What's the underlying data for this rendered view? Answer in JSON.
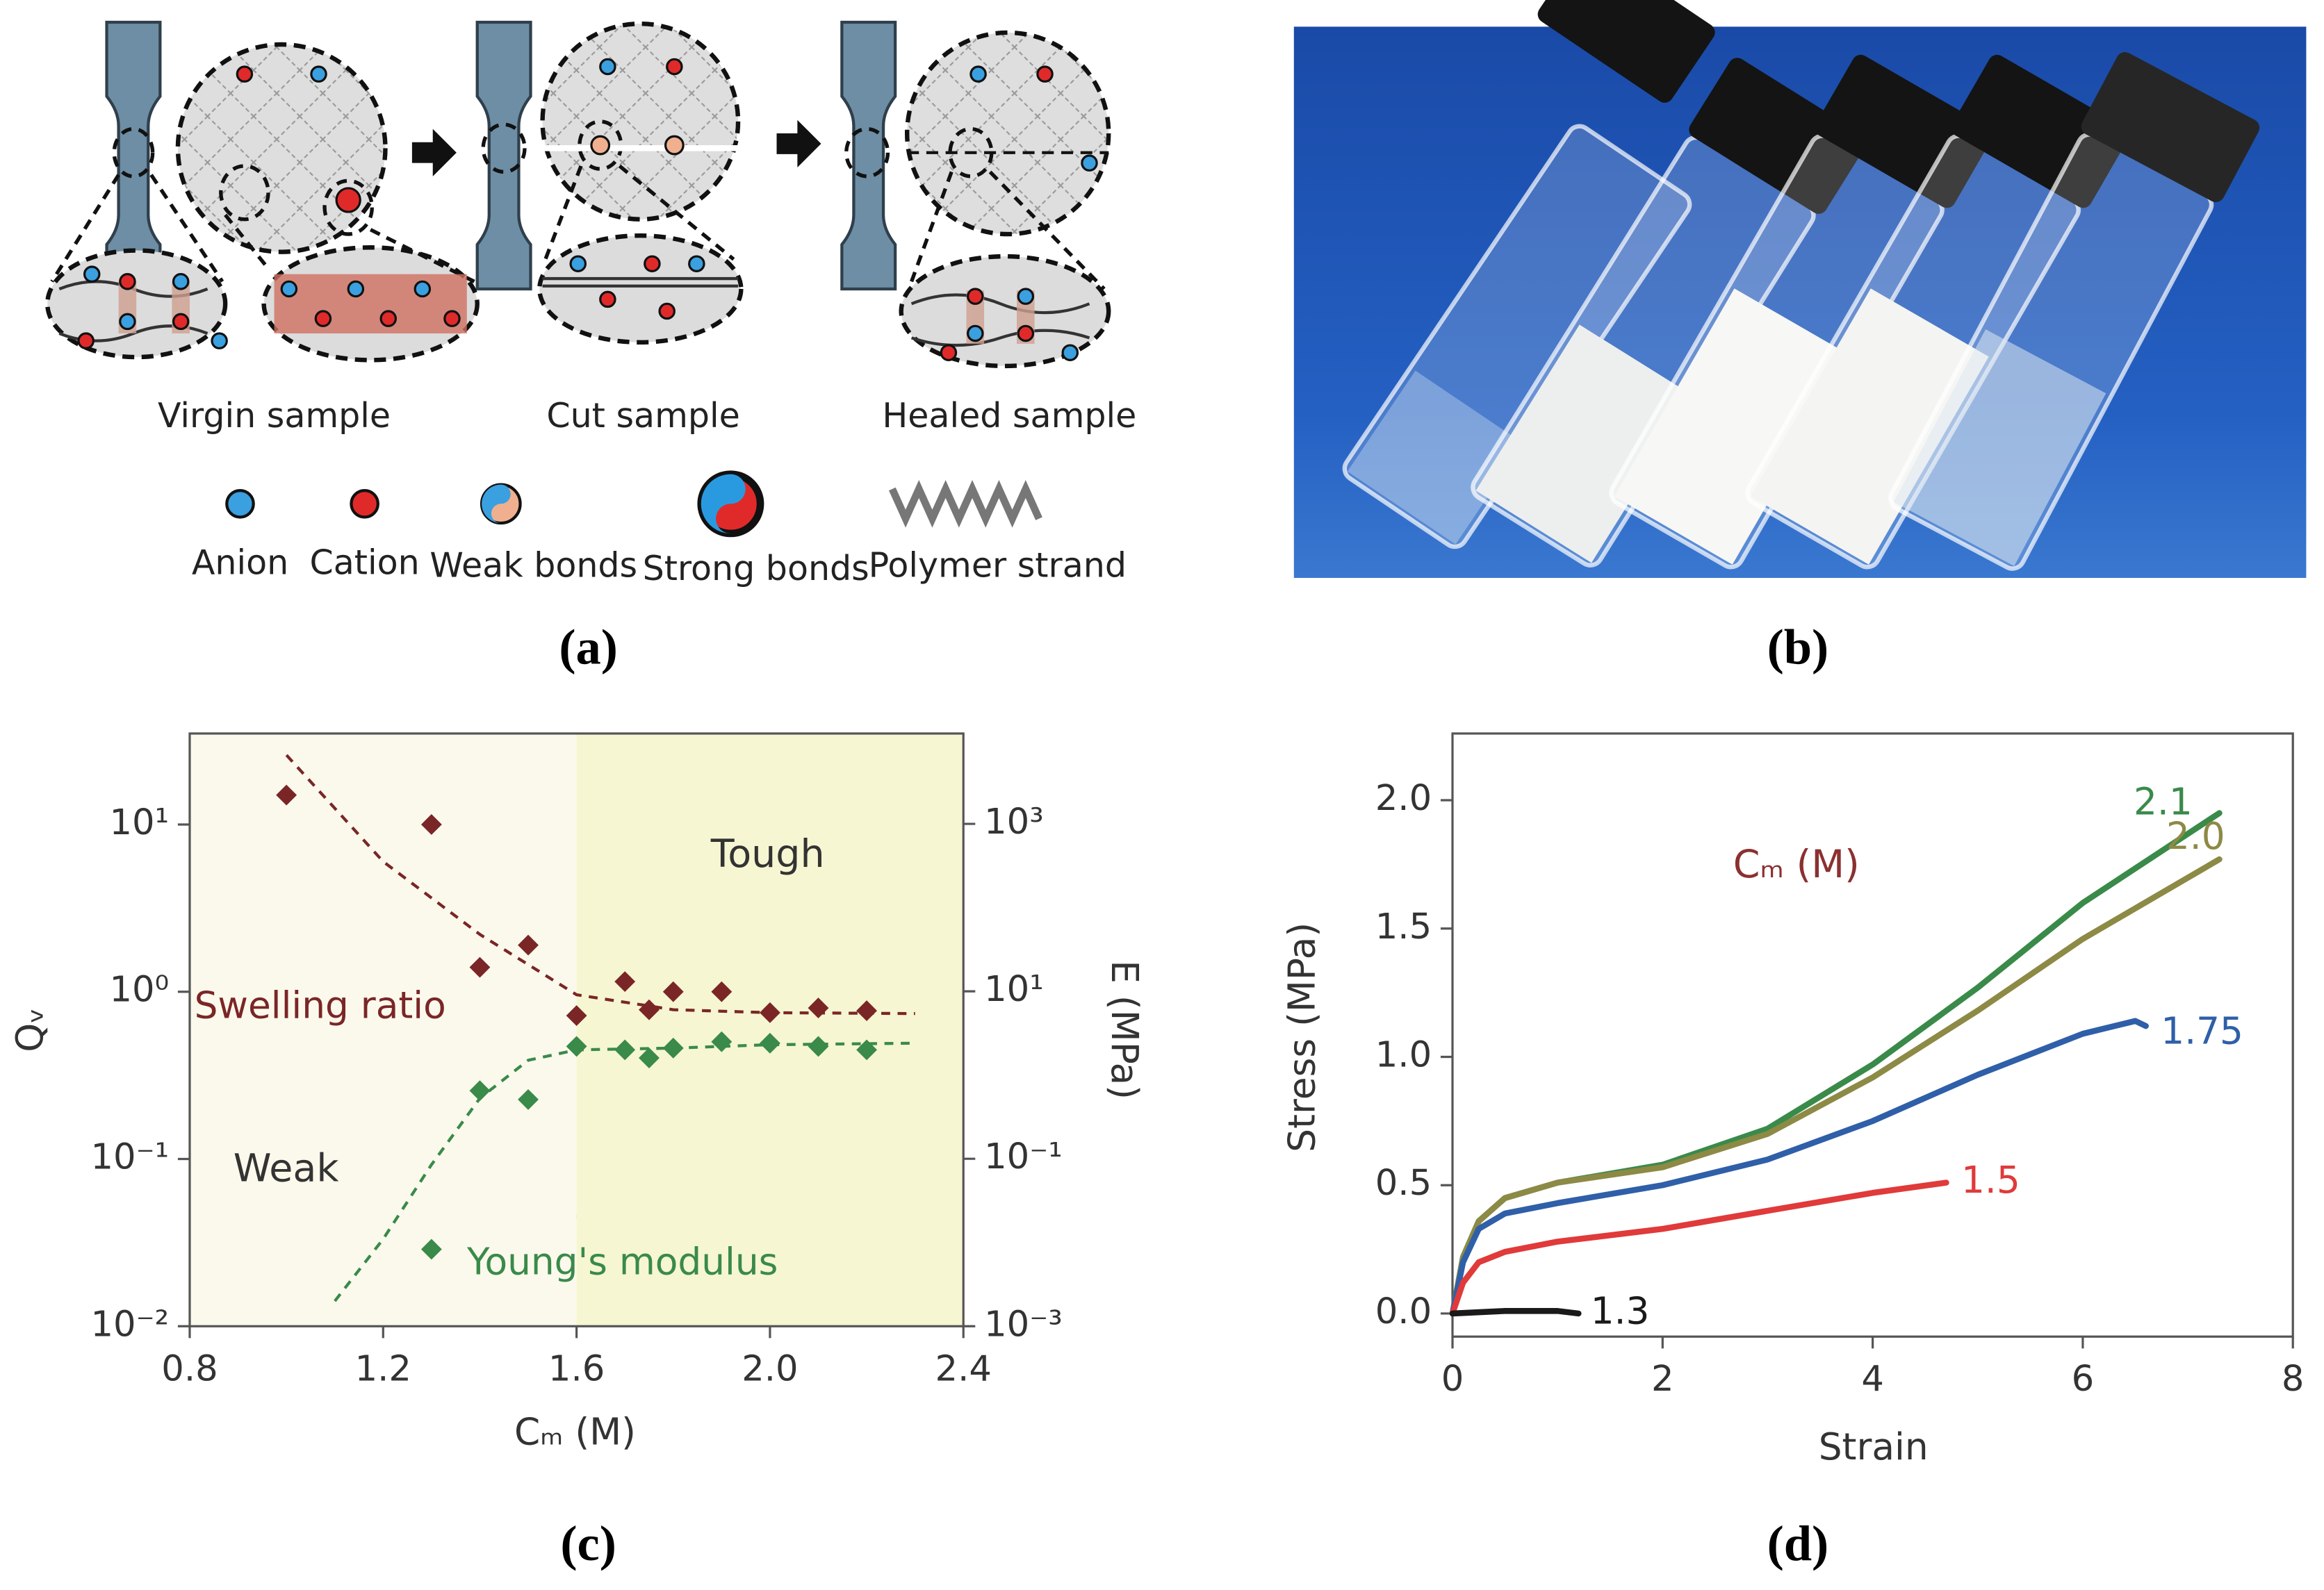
{
  "panels": {
    "a": {
      "caption": "(a)",
      "stages": [
        "Virgin  sample",
        "Cut sample",
        "Healed sample"
      ],
      "legend": [
        "Anion",
        "Cation",
        "Weak bonds",
        "Strong bonds",
        "Polymer strand"
      ]
    },
    "b": {
      "caption": "(b)"
    },
    "c": {
      "caption": "(c)"
    },
    "d": {
      "caption": "(d)"
    }
  },
  "chart_data": [
    {
      "type": "scatter",
      "xlabel": "Cₘ (M)",
      "ylabel": "Qᵥ",
      "y2label": "E (MPa)",
      "xlim": [
        0.8,
        2.4
      ],
      "xticks": [
        0.8,
        1.2,
        1.6,
        {
          "value": 2,
          "label": "2.0"
        },
        2.4
      ],
      "ylim": [
        0.01,
        35
      ],
      "ylog": true,
      "yticks": [
        {
          "value": 0.01,
          "label": "10⁻²"
        },
        {
          "value": 0.1,
          "label": "10⁻¹"
        },
        {
          "value": 1,
          "label": "10⁰"
        },
        {
          "value": 10,
          "label": "10¹"
        }
      ],
      "y2lim": [
        0.001,
        12000
      ],
      "y2log": true,
      "y2ticks": [
        {
          "value": 0.001,
          "label": "10⁻³"
        },
        {
          "value": 0.1,
          "label": "10⁻¹"
        },
        {
          "value": 10,
          "label": "10¹"
        },
        {
          "value": 1000,
          "label": "10³"
        }
      ],
      "regions": [
        {
          "name": "Weak",
          "xlim": [
            0.8,
            1.6
          ],
          "color": "#fbf9ec"
        },
        {
          "name": "Tough",
          "xlim": [
            1.6,
            2.4
          ],
          "color": "#f6f6d2"
        }
      ],
      "series": [
        {
          "name": "Swelling ratio",
          "color": "#7a2626",
          "x": [
            1.0,
            1.3,
            1.4,
            1.5,
            1.6,
            1.7,
            1.75,
            1.8,
            1.9,
            2.0,
            2.1,
            2.2
          ],
          "values": [
            15,
            10,
            1.4,
            1.9,
            0.72,
            1.15,
            0.78,
            1.0,
            1.0,
            0.75,
            0.8,
            0.77
          ]
        },
        {
          "name": "Young's modulus",
          "color": "#3a8a4a",
          "axis": "y2",
          "x": [
            1.3,
            1.4,
            1.5,
            1.6,
            1.7,
            1.75,
            1.8,
            1.9,
            2.0,
            2.1,
            2.2
          ],
          "values": [
            0.0083,
            0.65,
            0.51,
            2.2,
            2.0,
            1.6,
            2.1,
            2.5,
            2.4,
            2.2,
            2.0
          ]
        }
      ],
      "fits": [
        {
          "color": "#7a2626",
          "dashed": true,
          "x": [
            1.0,
            1.2,
            1.4,
            1.6,
            1.8,
            2.0,
            2.3
          ],
          "values": [
            26,
            6,
            2.2,
            0.96,
            0.78,
            0.75,
            0.74
          ]
        },
        {
          "color": "#3a8a4a",
          "dashed": true,
          "axis": "y2",
          "x": [
            1.1,
            1.2,
            1.3,
            1.4,
            1.5,
            1.6,
            1.8,
            2.0,
            2.3
          ],
          "values": [
            0.002,
            0.011,
            0.085,
            0.53,
            1.5,
            2.0,
            2.1,
            2.3,
            2.4
          ]
        }
      ]
    },
    {
      "type": "line",
      "xlabel": "Strain",
      "ylabel": "Stress (MPa)",
      "legend_title": "Cₘ (M)",
      "xlim": [
        0,
        8
      ],
      "xticks": [
        0,
        2,
        4,
        6,
        8
      ],
      "ylim": [
        -0.09,
        2.26
      ],
      "yticks": [
        {
          "value": 0,
          "label": "0.0"
        },
        0.5,
        {
          "value": 1,
          "label": "1.0"
        },
        1.5,
        {
          "value": 2,
          "label": "2.0"
        }
      ],
      "series": [
        {
          "name": "2.1",
          "color": "#3a8a4a",
          "x": [
            0,
            0.1,
            0.25,
            0.5,
            1,
            2,
            3,
            4,
            5,
            6,
            7.3
          ],
          "values": [
            0,
            0.22,
            0.36,
            0.45,
            0.51,
            0.58,
            0.72,
            0.97,
            1.27,
            1.6,
            1.95
          ]
        },
        {
          "name": "2.0",
          "color": "#8c8a45",
          "x": [
            0,
            0.1,
            0.25,
            0.5,
            1,
            2,
            3,
            4,
            5,
            6,
            7.3
          ],
          "values": [
            0,
            0.22,
            0.36,
            0.45,
            0.51,
            0.57,
            0.7,
            0.92,
            1.18,
            1.46,
            1.77
          ]
        },
        {
          "name": "1.75",
          "color": "#2f5fa8",
          "x": [
            0,
            0.1,
            0.25,
            0.5,
            1,
            2,
            3,
            4,
            5,
            6,
            6.5,
            6.6
          ],
          "values": [
            0,
            0.2,
            0.33,
            0.39,
            0.43,
            0.5,
            0.6,
            0.75,
            0.93,
            1.09,
            1.14,
            1.12
          ]
        },
        {
          "name": "1.5",
          "color": "#e03a3a",
          "x": [
            0,
            0.1,
            0.25,
            0.5,
            1,
            2,
            3,
            4,
            4.7
          ],
          "values": [
            0,
            0.12,
            0.2,
            0.24,
            0.28,
            0.33,
            0.4,
            0.47,
            0.51
          ]
        },
        {
          "name": "1.3",
          "color": "#1a1a1a",
          "x": [
            0,
            0.5,
            1,
            1.2
          ],
          "values": [
            0,
            0.01,
            0.01,
            0
          ]
        }
      ]
    }
  ]
}
